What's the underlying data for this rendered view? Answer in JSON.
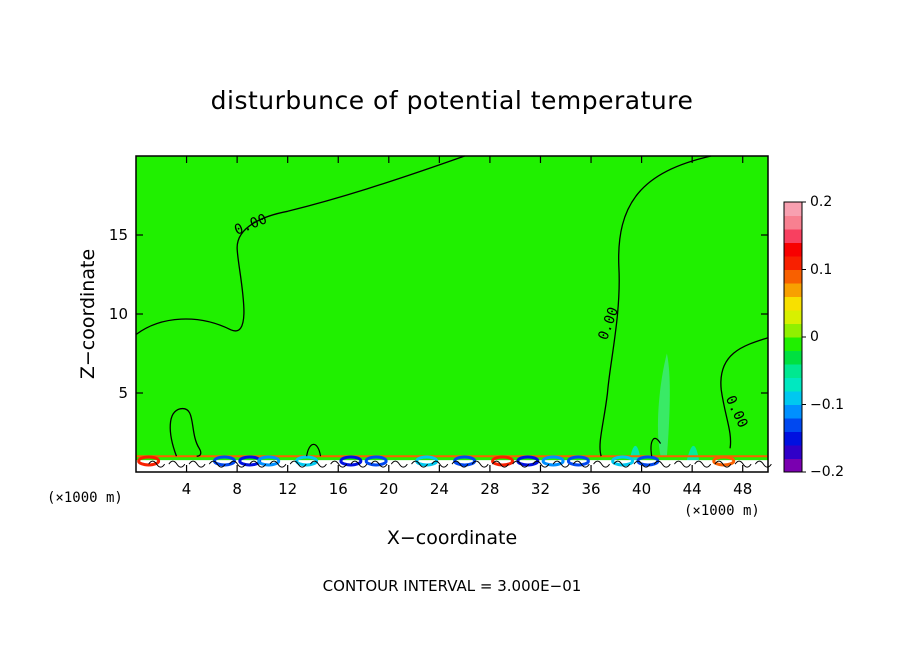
{
  "chart_data": {
    "type": "heatmap",
    "title": "disturbunce of potential temperature",
    "xlabel": "X−coordinate",
    "ylabel": "Z−coordinate",
    "x_unit_left": "(×1000 m)",
    "x_unit_right": "(×1000 m)",
    "x_ticks": [
      4,
      8,
      12,
      16,
      20,
      24,
      28,
      32,
      36,
      40,
      44,
      48
    ],
    "y_ticks": [
      5,
      10,
      15
    ],
    "xlim": [
      0,
      50
    ],
    "ylim": [
      0,
      20
    ],
    "colorbar": {
      "range": [
        -0.2,
        0.2
      ],
      "tick_labels": [
        "0.2",
        "0.1",
        "0",
        "−0.1",
        "−0.2"
      ],
      "tick_values": [
        0.2,
        0.1,
        0,
        -0.1,
        -0.2
      ],
      "colors": [
        "#7a00b0",
        "#3000c8",
        "#0010e0",
        "#0048f0",
        "#0090ff",
        "#00c8f0",
        "#00e8c0",
        "#00e890",
        "#00e040",
        "#20f000",
        "#90f000",
        "#d8f000",
        "#f8e000",
        "#f8a000",
        "#f86000",
        "#f82000",
        "#f80000",
        "#f84060",
        "#f88090",
        "#f8a0b0"
      ]
    },
    "background_value": 0,
    "background_color": "#20f000",
    "contour_labels": [
      "0.00",
      "0.00",
      "0.00"
    ],
    "contour_interval_note": "CONTOUR INTERVAL = 3.000E−01"
  }
}
